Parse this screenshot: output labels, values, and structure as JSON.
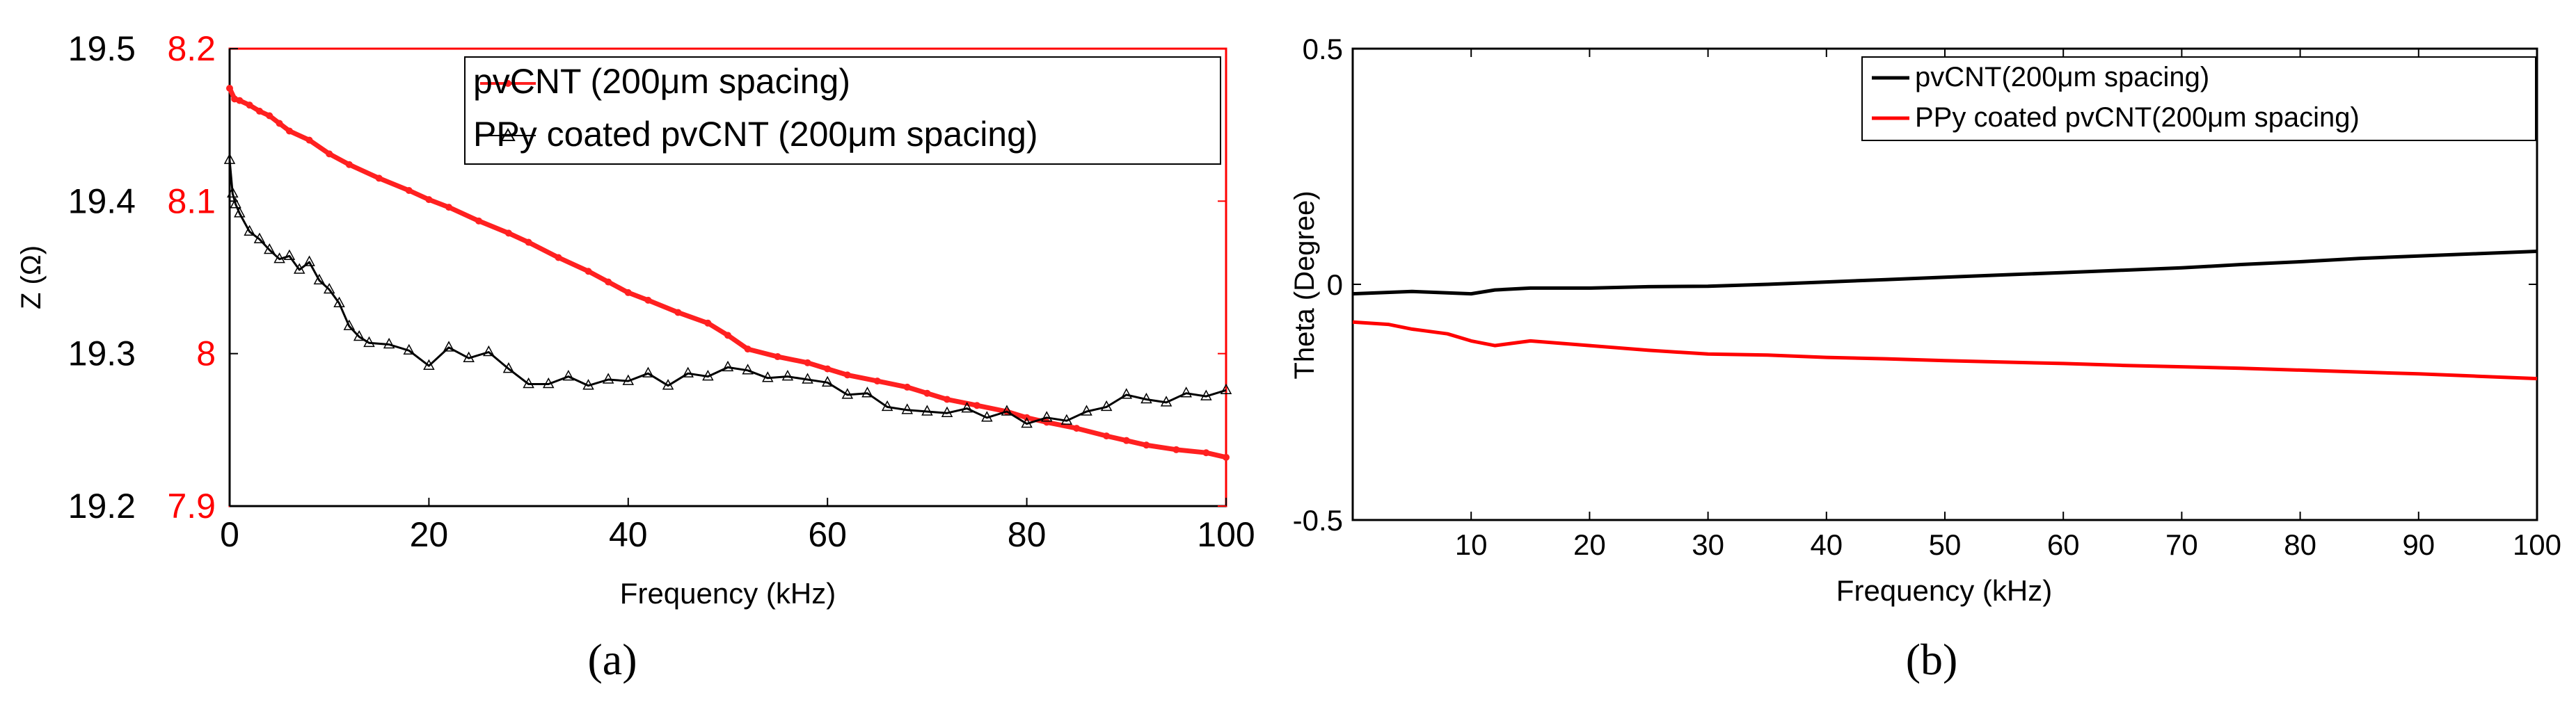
{
  "figure": {
    "panel_a_caption": "(a)",
    "panel_b_caption": "(b)"
  },
  "chart_data": [
    {
      "id": "a",
      "type": "line",
      "xlabel": "Frequency (kHz)",
      "ylabel": "Z (Ω)",
      "xlim": [
        0,
        100
      ],
      "x_ticks": [
        "0",
        "20",
        "40",
        "60",
        "80",
        "100"
      ],
      "y_left_ticks": [
        "19.2",
        "19.3",
        "19.4",
        "19.5"
      ],
      "y_right_ticks": [
        "7.9",
        "8",
        "8.1",
        "8.2"
      ],
      "y_left_range": [
        19.2,
        19.5
      ],
      "y_right_range": [
        7.9,
        8.2
      ],
      "grid": false,
      "legend_position": "top-right",
      "series": [
        {
          "name": "pvCNT (200μm spacing)",
          "color": "#ff2020",
          "marker": "dot",
          "axis": "right",
          "x": [
            0,
            0.5,
            1,
            2,
            3,
            4,
            5,
            6,
            8,
            10,
            12,
            15,
            18,
            20,
            22,
            25,
            28,
            30,
            33,
            36,
            38,
            40,
            42,
            45,
            48,
            50,
            52,
            55,
            58,
            60,
            62,
            65,
            68,
            70,
            72,
            75,
            78,
            80,
            82,
            85,
            88,
            90,
            92,
            95,
            98,
            100
          ],
          "values": [
            8.174,
            8.167,
            8.166,
            8.163,
            8.159,
            8.156,
            8.151,
            8.146,
            8.14,
            8.131,
            8.124,
            8.115,
            8.107,
            8.101,
            8.096,
            8.087,
            8.079,
            8.073,
            8.063,
            8.054,
            8.047,
            8.04,
            8.035,
            8.027,
            8.02,
            8.012,
            8.003,
            7.998,
            7.994,
            7.99,
            7.986,
            7.982,
            7.978,
            7.974,
            7.97,
            7.966,
            7.962,
            7.958,
            7.955,
            7.951,
            7.946,
            7.943,
            7.94,
            7.937,
            7.935,
            7.932
          ]
        },
        {
          "name": "PPy coated pvCNT (200μm spacing)",
          "color": "#000000",
          "marker": "triangle",
          "axis": "left",
          "x": [
            0,
            0.3,
            0.6,
            1,
            2,
            3,
            4,
            5,
            6,
            7,
            8,
            9,
            10,
            11,
            12,
            13,
            14,
            16,
            18,
            20,
            22,
            24,
            26,
            28,
            30,
            32,
            34,
            36,
            38,
            40,
            42,
            44,
            46,
            48,
            50,
            52,
            54,
            56,
            58,
            60,
            62,
            64,
            66,
            68,
            70,
            72,
            74,
            76,
            78,
            80,
            82,
            84,
            86,
            88,
            90,
            92,
            94,
            96,
            98,
            100
          ],
          "values": [
            19.427,
            19.405,
            19.398,
            19.392,
            19.38,
            19.375,
            19.368,
            19.362,
            19.364,
            19.355,
            19.36,
            19.348,
            19.342,
            19.333,
            19.318,
            19.311,
            19.307,
            19.306,
            19.302,
            19.292,
            19.304,
            19.297,
            19.301,
            19.29,
            19.28,
            19.28,
            19.285,
            19.279,
            19.283,
            19.282,
            19.287,
            19.279,
            19.287,
            19.285,
            19.291,
            19.289,
            19.284,
            19.285,
            19.283,
            19.281,
            19.273,
            19.274,
            19.265,
            19.263,
            19.262,
            19.261,
            19.264,
            19.258,
            19.262,
            19.254,
            19.258,
            19.256,
            19.262,
            19.265,
            19.273,
            19.27,
            19.268,
            19.274,
            19.272,
            19.276
          ]
        }
      ]
    },
    {
      "id": "b",
      "type": "line",
      "xlabel": "Frequency (kHz)",
      "ylabel": "Theta (Degree)",
      "xlim": [
        0,
        100
      ],
      "ylim": [
        -0.5,
        0.5
      ],
      "x_ticks": [
        "10",
        "20",
        "30",
        "40",
        "50",
        "60",
        "70",
        "80",
        "90",
        "100"
      ],
      "y_ticks": [
        "-0.5",
        "0",
        "0.5"
      ],
      "grid": false,
      "legend_position": "top-right",
      "series": [
        {
          "name": "pvCNT(200μm spacing)",
          "color": "#000000",
          "x": [
            0,
            5,
            10,
            12,
            15,
            20,
            25,
            30,
            35,
            40,
            45,
            50,
            55,
            60,
            65,
            70,
            75,
            80,
            85,
            90,
            95,
            100
          ],
          "values": [
            -0.02,
            -0.015,
            -0.02,
            -0.012,
            -0.008,
            -0.008,
            -0.005,
            -0.004,
            0.0,
            0.005,
            0.01,
            0.015,
            0.02,
            0.025,
            0.03,
            0.035,
            0.042,
            0.048,
            0.055,
            0.06,
            0.065,
            0.07
          ]
        },
        {
          "name": "PPy coated pvCNT(200μm spacing)",
          "color": "#ff0000",
          "x": [
            0,
            3,
            5,
            8,
            10,
            12,
            15,
            20,
            25,
            30,
            35,
            40,
            45,
            50,
            55,
            60,
            65,
            70,
            75,
            80,
            85,
            90,
            95,
            100
          ],
          "values": [
            -0.08,
            -0.085,
            -0.095,
            -0.105,
            -0.12,
            -0.13,
            -0.12,
            -0.13,
            -0.14,
            -0.148,
            -0.15,
            -0.155,
            -0.158,
            -0.162,
            -0.165,
            -0.168,
            -0.172,
            -0.175,
            -0.178,
            -0.182,
            -0.186,
            -0.19,
            -0.195,
            -0.2
          ]
        }
      ]
    }
  ]
}
